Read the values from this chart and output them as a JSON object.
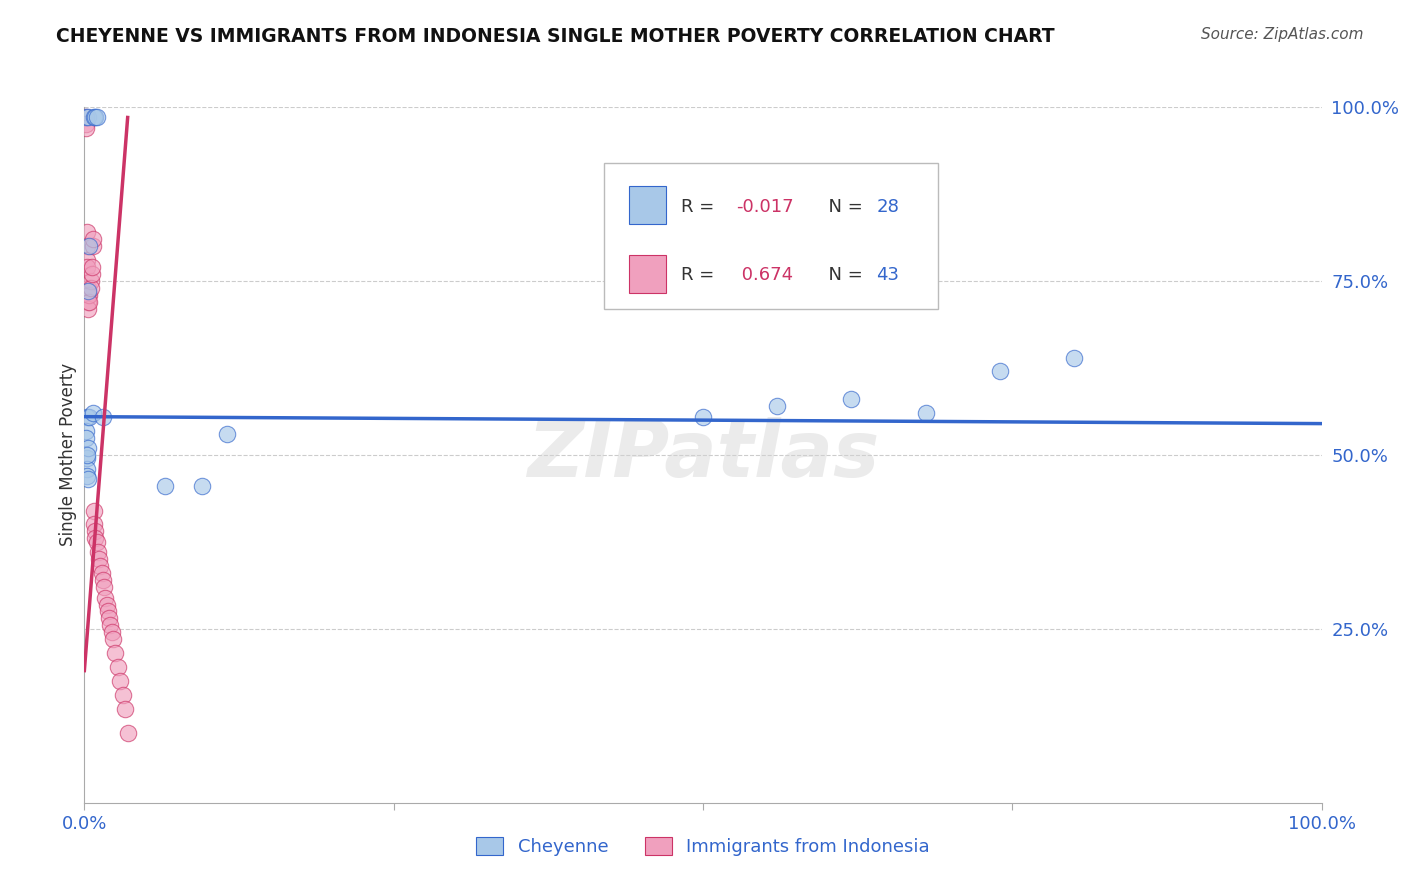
{
  "title": "CHEYENNE VS IMMIGRANTS FROM INDONESIA SINGLE MOTHER POVERTY CORRELATION CHART",
  "source_text": "Source: ZipAtlas.com",
  "ylabel": "Single Mother Poverty",
  "xlim": [
    0,
    1.0
  ],
  "ylim": [
    0,
    1.0
  ],
  "cheyenne_R": -0.017,
  "cheyenne_N": 28,
  "indonesia_R": 0.674,
  "indonesia_N": 43,
  "blue_color": "#a8c8e8",
  "pink_color": "#f0a0be",
  "blue_line_color": "#3366cc",
  "pink_line_color": "#cc3366",
  "label_color": "#3366cc",
  "watermark_text": "ZIPatlas",
  "background_color": "#ffffff",
  "grid_color": "#cccccc",
  "cheyenne_x": [
    0.001,
    0.004,
    0.003,
    0.008,
    0.009,
    0.01,
    0.002,
    0.001,
    0.001,
    0.003,
    0.004,
    0.007,
    0.015,
    0.065,
    0.095,
    0.115,
    0.002,
    0.002,
    0.003,
    0.002,
    0.002,
    0.003,
    0.5,
    0.56,
    0.62,
    0.68,
    0.74,
    0.8
  ],
  "cheyenne_y": [
    0.985,
    0.8,
    0.985,
    0.985,
    0.985,
    0.985,
    0.555,
    0.535,
    0.525,
    0.735,
    0.555,
    0.56,
    0.555,
    0.455,
    0.455,
    0.53,
    0.495,
    0.48,
    0.51,
    0.5,
    0.47,
    0.465,
    0.555,
    0.57,
    0.58,
    0.56,
    0.62,
    0.64
  ],
  "indonesia_x": [
    0.001,
    0.001,
    0.001,
    0.002,
    0.002,
    0.002,
    0.002,
    0.003,
    0.003,
    0.003,
    0.003,
    0.004,
    0.004,
    0.005,
    0.005,
    0.006,
    0.006,
    0.007,
    0.007,
    0.008,
    0.008,
    0.009,
    0.009,
    0.01,
    0.011,
    0.012,
    0.013,
    0.014,
    0.015,
    0.016,
    0.017,
    0.018,
    0.019,
    0.02,
    0.021,
    0.022,
    0.023,
    0.025,
    0.027,
    0.029,
    0.031,
    0.033,
    0.035
  ],
  "indonesia_y": [
    0.985,
    0.975,
    0.97,
    0.82,
    0.8,
    0.78,
    0.77,
    0.74,
    0.73,
    0.72,
    0.71,
    0.73,
    0.72,
    0.75,
    0.74,
    0.76,
    0.77,
    0.8,
    0.81,
    0.42,
    0.4,
    0.39,
    0.38,
    0.375,
    0.36,
    0.35,
    0.34,
    0.33,
    0.32,
    0.31,
    0.295,
    0.285,
    0.275,
    0.265,
    0.255,
    0.245,
    0.235,
    0.215,
    0.195,
    0.175,
    0.155,
    0.135,
    0.1
  ],
  "cheyenne_line_x": [
    0.0,
    1.0
  ],
  "cheyenne_line_y": [
    0.555,
    0.545
  ],
  "indonesia_line_x": [
    0.0,
    0.035
  ],
  "indonesia_line_y": [
    0.19,
    0.985
  ]
}
